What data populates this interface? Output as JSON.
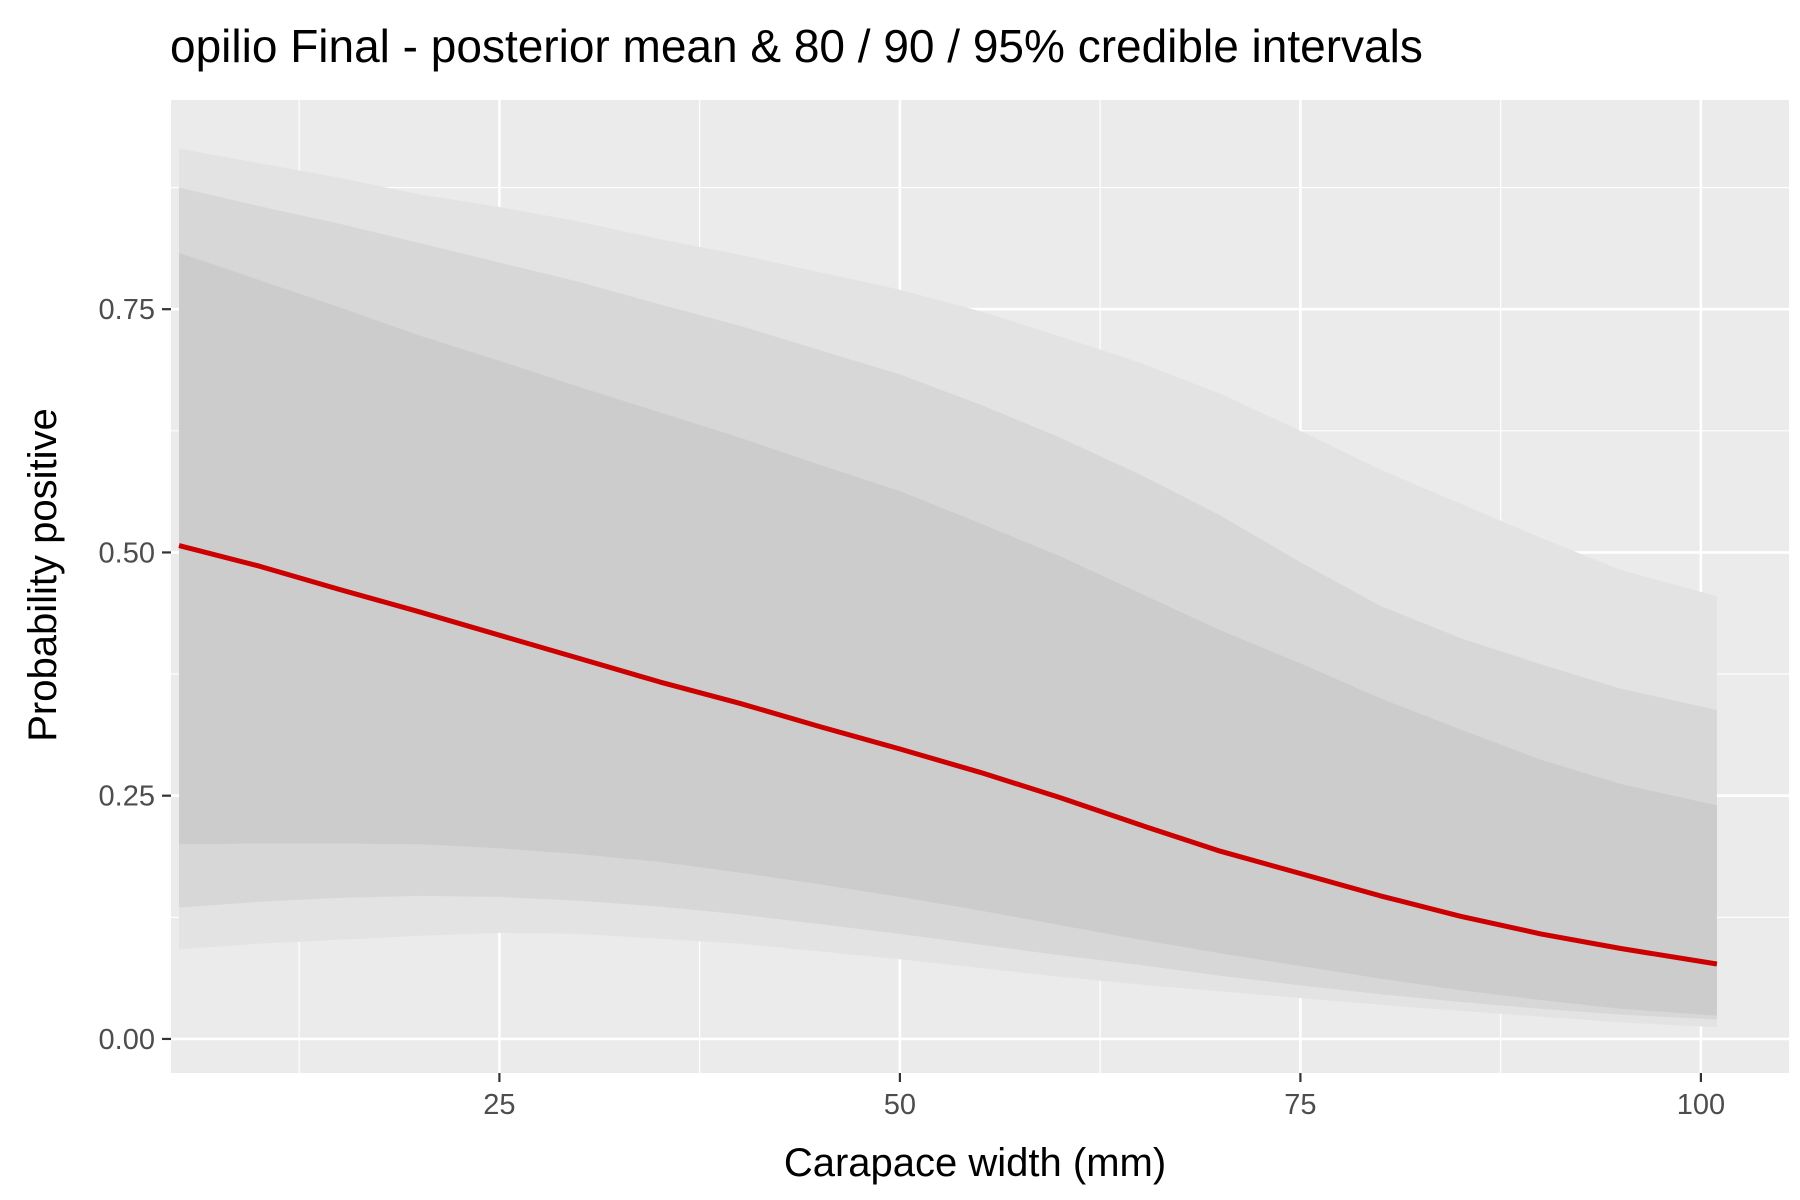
{
  "chart_data": {
    "type": "area",
    "title": "opilio Final - posterior mean & 80 / 90 / 95% credible intervals",
    "xlabel": "Carapace width (mm)",
    "ylabel": "Probability positive",
    "xlim": [
      4.5,
      105.5
    ],
    "ylim": [
      -0.035,
      0.965
    ],
    "x_ticks": [
      {
        "value": 25,
        "label": "25"
      },
      {
        "value": 50,
        "label": "50"
      },
      {
        "value": 75,
        "label": "75"
      },
      {
        "value": 100,
        "label": "100"
      }
    ],
    "y_ticks": [
      {
        "value": 0.0,
        "label": "0.00"
      },
      {
        "value": 0.25,
        "label": "0.25"
      },
      {
        "value": 0.5,
        "label": "0.50"
      },
      {
        "value": 0.75,
        "label": "0.75"
      }
    ],
    "grid": true,
    "x": [
      5,
      10,
      15,
      20,
      25,
      30,
      35,
      40,
      45,
      50,
      55,
      60,
      65,
      70,
      75,
      80,
      85,
      90,
      95,
      101
    ],
    "intervals": [
      {
        "level": "95%",
        "color": "#e3e3e3",
        "lower": [
          0.092,
          0.098,
          0.102,
          0.106,
          0.109,
          0.108,
          0.103,
          0.098,
          0.09,
          0.082,
          0.073,
          0.064,
          0.056,
          0.049,
          0.042,
          0.035,
          0.029,
          0.023,
          0.017,
          0.012
        ],
        "upper": [
          0.915,
          0.9,
          0.885,
          0.868,
          0.855,
          0.84,
          0.822,
          0.806,
          0.788,
          0.77,
          0.748,
          0.722,
          0.695,
          0.663,
          0.625,
          0.585,
          0.55,
          0.515,
          0.482,
          0.455
        ]
      },
      {
        "level": "90%",
        "color": "#d7d7d7",
        "lower": [
          0.135,
          0.141,
          0.145,
          0.147,
          0.146,
          0.142,
          0.136,
          0.128,
          0.118,
          0.108,
          0.097,
          0.086,
          0.076,
          0.065,
          0.055,
          0.046,
          0.038,
          0.031,
          0.025,
          0.02
        ],
        "upper": [
          0.875,
          0.856,
          0.838,
          0.818,
          0.798,
          0.778,
          0.755,
          0.733,
          0.708,
          0.683,
          0.652,
          0.618,
          0.58,
          0.538,
          0.49,
          0.445,
          0.412,
          0.385,
          0.36,
          0.338
        ]
      },
      {
        "level": "80%",
        "color": "#cccccc",
        "lower": [
          0.2,
          0.201,
          0.201,
          0.2,
          0.196,
          0.19,
          0.182,
          0.171,
          0.159,
          0.146,
          0.132,
          0.117,
          0.102,
          0.088,
          0.075,
          0.062,
          0.05,
          0.04,
          0.031,
          0.024
        ],
        "upper": [
          0.808,
          0.78,
          0.752,
          0.723,
          0.697,
          0.67,
          0.644,
          0.618,
          0.59,
          0.563,
          0.53,
          0.496,
          0.458,
          0.42,
          0.386,
          0.35,
          0.318,
          0.287,
          0.262,
          0.24
        ]
      }
    ],
    "series": [
      {
        "name": "posterior mean",
        "color": "#cc0000",
        "values": [
          0.507,
          0.486,
          0.462,
          0.439,
          0.415,
          0.391,
          0.367,
          0.345,
          0.321,
          0.298,
          0.274,
          0.248,
          0.22,
          0.193,
          0.17,
          0.147,
          0.126,
          0.108,
          0.093,
          0.077
        ]
      }
    ]
  }
}
